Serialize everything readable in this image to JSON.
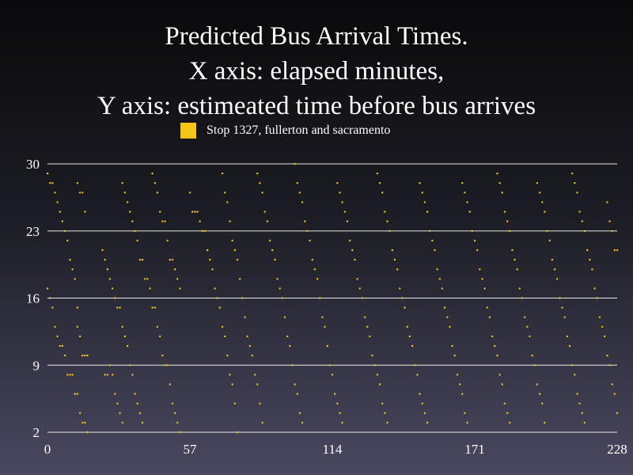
{
  "chart_data": {
    "type": "scatter",
    "title_lines": [
      "Predicted Bus Arrival Times.",
      "X axis: elapsed minutes,",
      "Y axis: estimeated time before bus arrives"
    ],
    "legend": [
      {
        "name": "Stop 1327, fullerton and sacramento",
        "color": "#f5c518"
      }
    ],
    "xlim": [
      0,
      228
    ],
    "ylim": [
      2,
      30
    ],
    "x_ticks": [
      0,
      57,
      114,
      171,
      228
    ],
    "y_ticks": [
      2,
      9,
      16,
      23,
      30
    ],
    "grid": "horizontal",
    "legend_position": "top-center",
    "series": [
      {
        "name": "Stop 1327, fullerton and sacramento",
        "color": "#f5c518",
        "points": [
          [
            0,
            29
          ],
          [
            1,
            28
          ],
          [
            2,
            28
          ],
          [
            3,
            27
          ],
          [
            4,
            26
          ],
          [
            5,
            25
          ],
          [
            6,
            24
          ],
          [
            7,
            23
          ],
          [
            8,
            22
          ],
          [
            9,
            20
          ],
          [
            10,
            19
          ],
          [
            11,
            18
          ],
          [
            0,
            17
          ],
          [
            1,
            16
          ],
          [
            2,
            15
          ],
          [
            3,
            13
          ],
          [
            4,
            12
          ],
          [
            5,
            11
          ],
          [
            6,
            11
          ],
          [
            7,
            10
          ],
          [
            8,
            8
          ],
          [
            9,
            8
          ],
          [
            10,
            8
          ],
          [
            11,
            6
          ],
          [
            12,
            6
          ],
          [
            13,
            4
          ],
          [
            14,
            3
          ],
          [
            15,
            3
          ],
          [
            16,
            2
          ],
          [
            12,
            28
          ],
          [
            13,
            27
          ],
          [
            14,
            27
          ],
          [
            15,
            25
          ],
          [
            12,
            15
          ],
          [
            12,
            13
          ],
          [
            13,
            12
          ],
          [
            14,
            10
          ],
          [
            15,
            10
          ],
          [
            16,
            10
          ],
          [
            22,
            21
          ],
          [
            23,
            20
          ],
          [
            24,
            19
          ],
          [
            25,
            18
          ],
          [
            26,
            17
          ],
          [
            27,
            16
          ],
          [
            28,
            15
          ],
          [
            29,
            15
          ],
          [
            30,
            13
          ],
          [
            31,
            12
          ],
          [
            32,
            11
          ],
          [
            33,
            9
          ],
          [
            34,
            8
          ],
          [
            35,
            6
          ],
          [
            36,
            5
          ],
          [
            37,
            4
          ],
          [
            38,
            3
          ],
          [
            30,
            28
          ],
          [
            31,
            27
          ],
          [
            32,
            26
          ],
          [
            33,
            25
          ],
          [
            34,
            24
          ],
          [
            35,
            23
          ],
          [
            36,
            22
          ],
          [
            37,
            20
          ],
          [
            38,
            20
          ],
          [
            39,
            18
          ],
          [
            40,
            18
          ],
          [
            41,
            17
          ],
          [
            42,
            15
          ],
          [
            43,
            15
          ],
          [
            44,
            13
          ],
          [
            45,
            12
          ],
          [
            46,
            10
          ],
          [
            47,
            9
          ],
          [
            48,
            9
          ],
          [
            49,
            7
          ],
          [
            50,
            5
          ],
          [
            51,
            4
          ],
          [
            52,
            3
          ],
          [
            53,
            2
          ],
          [
            23,
            8
          ],
          [
            24,
            8
          ],
          [
            25,
            9
          ],
          [
            26,
            8
          ],
          [
            27,
            6
          ],
          [
            28,
            5
          ],
          [
            29,
            4
          ],
          [
            30,
            3
          ],
          [
            42,
            29
          ],
          [
            43,
            28
          ],
          [
            44,
            27
          ],
          [
            45,
            25
          ],
          [
            46,
            24
          ],
          [
            47,
            24
          ],
          [
            48,
            22
          ],
          [
            49,
            20
          ],
          [
            50,
            20
          ],
          [
            51,
            19
          ],
          [
            52,
            18
          ],
          [
            53,
            17
          ],
          [
            57,
            27
          ],
          [
            58,
            25
          ],
          [
            59,
            25
          ],
          [
            60,
            25
          ],
          [
            61,
            24
          ],
          [
            62,
            23
          ],
          [
            63,
            23
          ],
          [
            64,
            21
          ],
          [
            65,
            20
          ],
          [
            66,
            19
          ],
          [
            67,
            17
          ],
          [
            68,
            16
          ],
          [
            69,
            15
          ],
          [
            70,
            13
          ],
          [
            71,
            12
          ],
          [
            72,
            10
          ],
          [
            73,
            8
          ],
          [
            74,
            7
          ],
          [
            75,
            5
          ],
          [
            76,
            2
          ],
          [
            70,
            29
          ],
          [
            71,
            27
          ],
          [
            72,
            26
          ],
          [
            73,
            24
          ],
          [
            74,
            22
          ],
          [
            75,
            21
          ],
          [
            76,
            20
          ],
          [
            77,
            18
          ],
          [
            78,
            16
          ],
          [
            79,
            14
          ],
          [
            80,
            12
          ],
          [
            81,
            11
          ],
          [
            82,
            10
          ],
          [
            83,
            8
          ],
          [
            84,
            7
          ],
          [
            85,
            5
          ],
          [
            86,
            3
          ],
          [
            84,
            29
          ],
          [
            85,
            28
          ],
          [
            86,
            27
          ],
          [
            87,
            25
          ],
          [
            88,
            24
          ],
          [
            89,
            22
          ],
          [
            90,
            21
          ],
          [
            91,
            20
          ],
          [
            92,
            18
          ],
          [
            93,
            17
          ],
          [
            94,
            16
          ],
          [
            95,
            14
          ],
          [
            96,
            12
          ],
          [
            97,
            11
          ],
          [
            98,
            9
          ],
          [
            99,
            7
          ],
          [
            100,
            6
          ],
          [
            101,
            4
          ],
          [
            102,
            3
          ],
          [
            99,
            30
          ],
          [
            100,
            28
          ],
          [
            101,
            27
          ],
          [
            102,
            26
          ],
          [
            103,
            24
          ],
          [
            104,
            23
          ],
          [
            105,
            22
          ],
          [
            106,
            20
          ],
          [
            107,
            19
          ],
          [
            108,
            18
          ],
          [
            109,
            16
          ],
          [
            110,
            14
          ],
          [
            111,
            13
          ],
          [
            112,
            11
          ],
          [
            113,
            9
          ],
          [
            114,
            8
          ],
          [
            115,
            6
          ],
          [
            116,
            5
          ],
          [
            117,
            4
          ],
          [
            118,
            3
          ],
          [
            116,
            28
          ],
          [
            117,
            27
          ],
          [
            118,
            26
          ],
          [
            119,
            25
          ],
          [
            120,
            24
          ],
          [
            121,
            22
          ],
          [
            122,
            21
          ],
          [
            123,
            20
          ],
          [
            124,
            18
          ],
          [
            125,
            17
          ],
          [
            126,
            16
          ],
          [
            127,
            14
          ],
          [
            128,
            13
          ],
          [
            129,
            12
          ],
          [
            130,
            10
          ],
          [
            131,
            9
          ],
          [
            132,
            8
          ],
          [
            133,
            7
          ],
          [
            134,
            5
          ],
          [
            135,
            4
          ],
          [
            136,
            3
          ],
          [
            132,
            29
          ],
          [
            133,
            28
          ],
          [
            134,
            27
          ],
          [
            135,
            25
          ],
          [
            136,
            24
          ],
          [
            137,
            23
          ],
          [
            138,
            21
          ],
          [
            139,
            20
          ],
          [
            140,
            19
          ],
          [
            141,
            17
          ],
          [
            142,
            16
          ],
          [
            143,
            15
          ],
          [
            144,
            13
          ],
          [
            145,
            12
          ],
          [
            146,
            11
          ],
          [
            147,
            9
          ],
          [
            148,
            8
          ],
          [
            149,
            6
          ],
          [
            150,
            5
          ],
          [
            151,
            4
          ],
          [
            152,
            3
          ],
          [
            149,
            28
          ],
          [
            150,
            27
          ],
          [
            151,
            26
          ],
          [
            152,
            25
          ],
          [
            153,
            23
          ],
          [
            154,
            22
          ],
          [
            155,
            21
          ],
          [
            156,
            19
          ],
          [
            157,
            18
          ],
          [
            158,
            17
          ],
          [
            159,
            15
          ],
          [
            160,
            14
          ],
          [
            161,
            13
          ],
          [
            162,
            11
          ],
          [
            163,
            10
          ],
          [
            164,
            8
          ],
          [
            165,
            7
          ],
          [
            166,
            6
          ],
          [
            167,
            4
          ],
          [
            168,
            3
          ],
          [
            166,
            28
          ],
          [
            167,
            27
          ],
          [
            168,
            26
          ],
          [
            169,
            25
          ],
          [
            170,
            23
          ],
          [
            171,
            22
          ],
          [
            172,
            21
          ],
          [
            173,
            19
          ],
          [
            174,
            18
          ],
          [
            175,
            17
          ],
          [
            176,
            15
          ],
          [
            177,
            14
          ],
          [
            178,
            12
          ],
          [
            179,
            11
          ],
          [
            180,
            10
          ],
          [
            181,
            8
          ],
          [
            182,
            7
          ],
          [
            183,
            5
          ],
          [
            184,
            4
          ],
          [
            185,
            3
          ],
          [
            180,
            29
          ],
          [
            181,
            28
          ],
          [
            182,
            27
          ],
          [
            183,
            25
          ],
          [
            184,
            24
          ],
          [
            185,
            23
          ],
          [
            186,
            21
          ],
          [
            187,
            20
          ],
          [
            188,
            19
          ],
          [
            189,
            17
          ],
          [
            190,
            16
          ],
          [
            191,
            14
          ],
          [
            192,
            13
          ],
          [
            193,
            12
          ],
          [
            194,
            10
          ],
          [
            195,
            9
          ],
          [
            196,
            7
          ],
          [
            197,
            6
          ],
          [
            198,
            5
          ],
          [
            199,
            3
          ],
          [
            196,
            28
          ],
          [
            197,
            27
          ],
          [
            198,
            26
          ],
          [
            199,
            25
          ],
          [
            200,
            23
          ],
          [
            201,
            22
          ],
          [
            202,
            20
          ],
          [
            203,
            19
          ],
          [
            204,
            18
          ],
          [
            205,
            16
          ],
          [
            206,
            15
          ],
          [
            207,
            14
          ],
          [
            208,
            12
          ],
          [
            209,
            11
          ],
          [
            210,
            9
          ],
          [
            211,
            8
          ],
          [
            212,
            6
          ],
          [
            213,
            5
          ],
          [
            214,
            4
          ],
          [
            215,
            3
          ],
          [
            210,
            29
          ],
          [
            211,
            28
          ],
          [
            212,
            27
          ],
          [
            213,
            25
          ],
          [
            214,
            24
          ],
          [
            215,
            23
          ],
          [
            216,
            21
          ],
          [
            217,
            20
          ],
          [
            218,
            19
          ],
          [
            219,
            17
          ],
          [
            220,
            16
          ],
          [
            221,
            14
          ],
          [
            222,
            13
          ],
          [
            223,
            12
          ],
          [
            224,
            10
          ],
          [
            225,
            9
          ],
          [
            226,
            7
          ],
          [
            227,
            6
          ],
          [
            228,
            4
          ],
          [
            224,
            26
          ],
          [
            225,
            24
          ],
          [
            226,
            23
          ],
          [
            227,
            21
          ],
          [
            228,
            21
          ]
        ]
      }
    ]
  }
}
